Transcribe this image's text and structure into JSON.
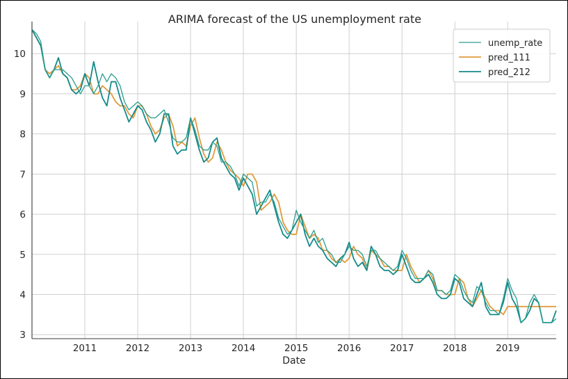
{
  "chart_data": {
    "type": "line",
    "title": "ARIMA forecast of the US unemployment rate",
    "xlabel": "Date",
    "ylabel": "",
    "x_ticks": [
      "2011",
      "2012",
      "2013",
      "2014",
      "2015",
      "2016",
      "2017",
      "2018",
      "2019"
    ],
    "y_ticks": [
      "3",
      "4",
      "5",
      "6",
      "7",
      "8",
      "9",
      "10"
    ],
    "xlim": [
      "2010-01",
      "2019-12"
    ],
    "ylim": [
      2.9,
      10.8
    ],
    "grid": true,
    "legend_position": "top-right",
    "x_start": "2010-01",
    "frequency": "monthly",
    "series": [
      {
        "name": "unemp_rate",
        "color": "#2a9d8f",
        "values": [
          10.6,
          10.5,
          10.3,
          9.6,
          9.4,
          9.6,
          9.6,
          9.6,
          9.5,
          9.4,
          9.2,
          9.0,
          9.2,
          9.2,
          9.0,
          9.2,
          9.5,
          9.3,
          9.5,
          9.4,
          9.2,
          8.8,
          8.6,
          8.7,
          8.8,
          8.7,
          8.5,
          8.4,
          8.4,
          8.5,
          8.6,
          8.3,
          7.9,
          7.8,
          7.8,
          7.9,
          8.4,
          8.1,
          7.7,
          7.6,
          7.6,
          7.8,
          7.7,
          7.3,
          7.3,
          7.2,
          7.0,
          6.7,
          7.0,
          6.9,
          6.8,
          6.2,
          6.3,
          6.3,
          6.5,
          6.3,
          5.9,
          5.7,
          5.5,
          5.6,
          6.1,
          5.8,
          5.6,
          5.4,
          5.6,
          5.3,
          5.4,
          5.1,
          5.0,
          4.8,
          4.8,
          5.0,
          5.2,
          5.1,
          5.1,
          5.0,
          4.7,
          5.1,
          5.1,
          4.9,
          4.8,
          4.7,
          4.6,
          4.7,
          5.1,
          4.9,
          4.6,
          4.4,
          4.4,
          4.4,
          4.6,
          4.5,
          4.1,
          4.1,
          4.0,
          4.1,
          4.5,
          4.4,
          4.1,
          3.9,
          3.8,
          4.2,
          4.1,
          3.8,
          3.6,
          3.6,
          3.5,
          3.9,
          4.4,
          4.1,
          3.9,
          3.3,
          3.4,
          3.8,
          4.0,
          3.8,
          3.3,
          3.3,
          3.3,
          3.4
        ]
      },
      {
        "name": "pred_111",
        "color": "#e09a3e",
        "values": [
          10.6,
          10.4,
          10.2,
          9.6,
          9.5,
          9.6,
          9.7,
          9.5,
          9.4,
          9.1,
          9.1,
          9.2,
          9.5,
          9.4,
          9.0,
          9.0,
          9.2,
          9.1,
          9.0,
          8.8,
          8.7,
          8.7,
          8.5,
          8.4,
          8.7,
          8.7,
          8.5,
          8.2,
          8.0,
          8.1,
          8.4,
          8.5,
          8.2,
          7.7,
          7.8,
          7.7,
          8.2,
          8.4,
          7.9,
          7.5,
          7.3,
          7.4,
          7.8,
          7.6,
          7.3,
          7.1,
          7.0,
          6.9,
          6.7,
          7.0,
          7.0,
          6.8,
          6.1,
          6.2,
          6.3,
          6.5,
          6.3,
          5.8,
          5.6,
          5.5,
          5.5,
          6.0,
          5.7,
          5.4,
          5.5,
          5.4,
          5.1,
          5.1,
          4.9,
          4.8,
          4.9,
          4.8,
          4.9,
          5.2,
          5.0,
          4.9,
          4.6,
          5.1,
          5.0,
          4.9,
          4.7,
          4.7,
          4.6,
          4.6,
          4.6,
          5.0,
          4.7,
          4.5,
          4.3,
          4.4,
          4.6,
          4.4,
          4.1,
          4.1,
          4.0,
          4.0,
          4.0,
          4.4,
          4.3,
          3.9,
          3.7,
          3.9,
          4.1,
          3.9,
          3.7,
          3.6,
          3.6,
          3.5,
          3.7,
          3.7,
          3.7,
          3.7,
          3.7,
          3.7,
          3.7,
          3.7,
          3.7,
          3.7,
          3.7,
          3.7
        ]
      },
      {
        "name": "pred_212",
        "color": "#138a8a",
        "values": [
          10.6,
          10.4,
          10.2,
          9.6,
          9.4,
          9.6,
          9.9,
          9.5,
          9.4,
          9.1,
          9.0,
          9.1,
          9.5,
          9.2,
          9.8,
          9.3,
          8.9,
          8.7,
          9.3,
          9.3,
          8.9,
          8.6,
          8.3,
          8.5,
          8.7,
          8.6,
          8.3,
          8.1,
          7.8,
          8.0,
          8.5,
          8.5,
          7.7,
          7.5,
          7.6,
          7.6,
          8.4,
          8.0,
          7.6,
          7.3,
          7.4,
          7.8,
          7.9,
          7.4,
          7.2,
          7.0,
          6.9,
          6.6,
          6.9,
          6.7,
          6.5,
          6.0,
          6.2,
          6.4,
          6.6,
          6.2,
          5.8,
          5.5,
          5.4,
          5.6,
          5.8,
          6.0,
          5.5,
          5.2,
          5.4,
          5.2,
          5.1,
          4.9,
          4.8,
          4.7,
          4.9,
          5.0,
          5.3,
          4.9,
          4.7,
          4.8,
          4.6,
          5.2,
          5.0,
          4.7,
          4.6,
          4.6,
          4.5,
          4.6,
          5.0,
          4.7,
          4.4,
          4.3,
          4.3,
          4.4,
          4.5,
          4.3,
          4.0,
          3.9,
          3.9,
          4.0,
          4.4,
          4.3,
          3.9,
          3.8,
          3.7,
          4.0,
          4.3,
          3.7,
          3.5,
          3.5,
          3.5,
          3.8,
          4.3,
          3.9,
          3.7,
          3.3,
          3.4,
          3.6,
          3.9,
          3.8,
          3.3,
          3.3,
          3.3,
          3.6
        ]
      }
    ]
  }
}
